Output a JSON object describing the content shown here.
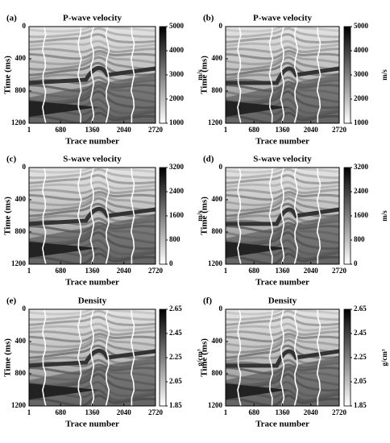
{
  "chart_data": [
    {
      "type": "heatmap",
      "panel_label": "(a)",
      "title": "P-wave velocity",
      "xlabel": "Trace number",
      "ylabel": "Time (ms)",
      "xlim": [
        1,
        2720
      ],
      "xticks": [
        1,
        680,
        1360,
        2040,
        2720
      ],
      "ylim": [
        0,
        1200
      ],
      "yticks": [
        0,
        400,
        800,
        1200
      ],
      "invert_y": true,
      "cmap": "gray_r",
      "colorbar": {
        "label": "m/s",
        "lim": [
          1000,
          5000
        ],
        "ticks": [
          1000,
          2000,
          3000,
          4000,
          5000
        ]
      }
    },
    {
      "type": "heatmap",
      "panel_label": "(b)",
      "title": "P-wave velocity",
      "xlabel": "Trace number",
      "ylabel": "Time (ms)",
      "xlim": [
        1,
        2720
      ],
      "xticks": [
        1,
        680,
        1360,
        2040,
        2720
      ],
      "ylim": [
        0,
        1200
      ],
      "yticks": [
        0,
        400,
        800,
        1200
      ],
      "invert_y": true,
      "cmap": "gray_r",
      "colorbar": {
        "label": "m/s",
        "lim": [
          1000,
          5000
        ],
        "ticks": [
          1000,
          2000,
          3000,
          4000,
          5000
        ]
      }
    },
    {
      "type": "heatmap",
      "panel_label": "(c)",
      "title": "S-wave velocity",
      "xlabel": "Trace number",
      "ylabel": "Time (ms)",
      "xlim": [
        1,
        2720
      ],
      "xticks": [
        1,
        680,
        1360,
        2040,
        2720
      ],
      "ylim": [
        0,
        1200
      ],
      "yticks": [
        0,
        400,
        800,
        1200
      ],
      "invert_y": true,
      "cmap": "gray_r",
      "colorbar": {
        "label": "m/s",
        "lim": [
          0,
          3200
        ],
        "ticks": [
          0,
          800,
          1600,
          2400,
          3200
        ]
      }
    },
    {
      "type": "heatmap",
      "panel_label": "(d)",
      "title": "S-wave velocity",
      "xlabel": "Trace number",
      "ylabel": "Time (ms)",
      "xlim": [
        1,
        2720
      ],
      "xticks": [
        1,
        680,
        1360,
        2040,
        2720
      ],
      "ylim": [
        0,
        1200
      ],
      "yticks": [
        0,
        400,
        800,
        1200
      ],
      "invert_y": true,
      "cmap": "gray_r",
      "colorbar": {
        "label": "m/s",
        "lim": [
          0,
          3200
        ],
        "ticks": [
          0,
          800,
          1600,
          2400,
          3200
        ]
      }
    },
    {
      "type": "heatmap",
      "panel_label": "(e)",
      "title": "Density",
      "xlabel": "Trace number",
      "ylabel": "Time (ms)",
      "xlim": [
        1,
        2720
      ],
      "xticks": [
        1,
        680,
        1360,
        2040,
        2720
      ],
      "ylim": [
        0,
        1200
      ],
      "yticks": [
        0,
        400,
        800,
        1200
      ],
      "invert_y": true,
      "cmap": "gray_r",
      "colorbar": {
        "label": "g/cm³",
        "lim": [
          1.85,
          2.65
        ],
        "ticks": [
          1.85,
          2.05,
          2.25,
          2.45,
          2.65
        ]
      }
    },
    {
      "type": "heatmap",
      "panel_label": "(f)",
      "title": "Density",
      "xlabel": "Trace number",
      "ylabel": "Time (ms)",
      "xlim": [
        1,
        2720
      ],
      "xticks": [
        1,
        680,
        1360,
        2040,
        2720
      ],
      "ylim": [
        0,
        1200
      ],
      "yticks": [
        0,
        400,
        800,
        1200
      ],
      "invert_y": true,
      "cmap": "gray_r",
      "colorbar": {
        "label": "g/cm³",
        "lim": [
          1.85,
          2.65
        ],
        "ticks": [
          1.85,
          2.05,
          2.25,
          2.45,
          2.65
        ]
      }
    }
  ]
}
